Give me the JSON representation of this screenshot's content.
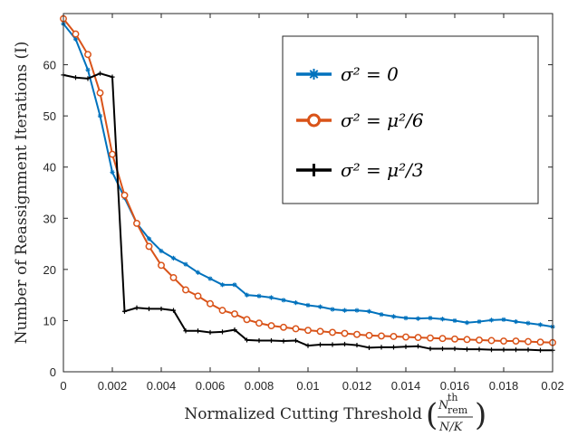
{
  "chart_data": {
    "type": "line",
    "xlabel": "Normalized Cutting Threshold",
    "xlabel_fraction": {
      "num_base": "N",
      "num_sup": "th",
      "num_sub": "rem",
      "den": "N/K"
    },
    "ylabel": "Number of Reassignment Iterations (I)",
    "xlim": [
      0,
      0.02
    ],
    "ylim": [
      0,
      70
    ],
    "x_ticks": [
      "0",
      "0.002",
      "0.004",
      "0.006",
      "0.008",
      "0.01",
      "0.012",
      "0.014",
      "0.016",
      "0.018",
      "0.02"
    ],
    "y_ticks": [
      "0",
      "10",
      "20",
      "30",
      "40",
      "50",
      "60"
    ],
    "grid": false,
    "legend_position": "top-right",
    "x": [
      0,
      0.0005,
      0.001,
      0.0015,
      0.002,
      0.0025,
      0.003,
      0.0035,
      0.004,
      0.0045,
      0.005,
      0.0055,
      0.006,
      0.0065,
      0.007,
      0.0075,
      0.008,
      0.0085,
      0.009,
      0.0095,
      0.01,
      0.0105,
      0.011,
      0.0115,
      0.012,
      0.0125,
      0.013,
      0.0135,
      0.014,
      0.0145,
      0.015,
      0.0155,
      0.016,
      0.0165,
      0.017,
      0.0175,
      0.018,
      0.0185,
      0.019,
      0.0195,
      0.02
    ],
    "series": [
      {
        "name": "σ² = 0",
        "color": "#0072bd",
        "marker": "asterisk",
        "values": [
          68,
          65,
          59,
          50,
          39,
          34,
          29,
          26,
          23.6,
          22.2,
          21,
          19.4,
          18.2,
          17,
          17,
          15,
          14.8,
          14.5,
          14,
          13.5,
          13,
          12.7,
          12.2,
          12,
          12,
          11.8,
          11.2,
          10.8,
          10.5,
          10.4,
          10.5,
          10.3,
          10,
          9.6,
          9.8,
          10.1,
          10.2,
          9.8,
          9.5,
          9.2,
          8.8
        ]
      },
      {
        "name": "σ² = μ²/6",
        "color": "#d95319",
        "marker": "circle",
        "values": [
          69,
          66,
          62,
          54.5,
          42.5,
          34.5,
          29,
          24.5,
          20.8,
          18.4,
          16,
          14.8,
          13.3,
          12,
          11.3,
          10.2,
          9.5,
          9,
          8.7,
          8.4,
          8.1,
          7.9,
          7.7,
          7.5,
          7.3,
          7.1,
          7,
          6.9,
          6.8,
          6.7,
          6.6,
          6.5,
          6.4,
          6.3,
          6.2,
          6.1,
          6,
          6,
          5.9,
          5.8,
          5.7
        ]
      },
      {
        "name": "σ² = μ²/3",
        "color": "#000000",
        "marker": "plus",
        "values": [
          58,
          57.5,
          57.3,
          58.3,
          57.6,
          11.8,
          12.5,
          12.3,
          12.3,
          12,
          8,
          8,
          7.7,
          7.8,
          8.2,
          6.2,
          6.1,
          6.1,
          6,
          6.1,
          5.1,
          5.3,
          5.3,
          5.4,
          5.2,
          4.7,
          4.8,
          4.8,
          4.9,
          5,
          4.5,
          4.5,
          4.5,
          4.4,
          4.4,
          4.3,
          4.3,
          4.3,
          4.3,
          4.2,
          4.2
        ]
      }
    ]
  }
}
